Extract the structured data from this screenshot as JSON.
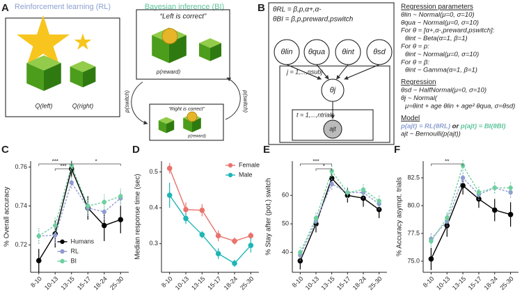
{
  "panel_a": {
    "panel_label": "A",
    "rl_title": "Reinforcement learning (RL)",
    "bi_title": "Bayesian inference (BI)",
    "q_left": "Q(left)",
    "q_right": "Q(right)",
    "left_correct": "“Left is correct”",
    "right_correct": "“Right is correct”",
    "p_reward": [
      "p(reward)",
      "p(reward)"
    ],
    "p_switch": [
      "p(switch)",
      "p(switch)"
    ]
  },
  "panel_b": {
    "panel_label": "B",
    "theta_rl": "θRL = β,p,α+,α-",
    "theta_bi": "θBI = β,p,preward,pswitch",
    "nodes": [
      "θlin",
      "θqua",
      "θint",
      "θsd"
    ],
    "subj_plate": "j = 1,...,nsubj",
    "node_j": "θj",
    "trial_plate": "t = 1,...,ntrials",
    "node_a": "ajt",
    "lines": [
      {
        "text": "Regression parameters",
        "kind": "heading"
      },
      {
        "text": "θlin ~ Normal(μ=0, σ=10)",
        "kind": "plain"
      },
      {
        "text": "θqua ~ Normal(μ=0, σ=10)",
        "kind": "plain"
      },
      {
        "text": "For θ = [α+,α-,preward,pswitch]:",
        "kind": "plain"
      },
      {
        "text": "θint ~ Beta(α=1, β=1)",
        "kind": "indent"
      },
      {
        "text": "For θ = p:",
        "kind": "plain"
      },
      {
        "text": "θint ~ Normal(μ=0, σ=10)",
        "kind": "indent"
      },
      {
        "text": "For θ = β:",
        "kind": "plain"
      },
      {
        "text": "θint ~ Gamma(α=1, β=1)",
        "kind": "indent"
      },
      {
        "text": "Regression",
        "kind": "heading"
      },
      {
        "text": "θsd ~ HalfNormal(μ=0, σ=10)",
        "kind": "plain"
      },
      {
        "text": "θj ~ Normal(",
        "kind": "plain"
      },
      {
        "text": "μ=θint + age θlin + age² θqua, σ=θsd)",
        "kind": "indent"
      },
      {
        "text": "Model",
        "kind": "heading"
      },
      {
        "parts": [
          {
            "text": "p(ajt) = RL(θRL)",
            "color": "#8a9fd0"
          },
          {
            "text": " or "
          },
          {
            "text": "p(ajt) = BI(θBI)",
            "color": "#5cc49a"
          }
        ],
        "kind": "plain"
      },
      {
        "text": "ajt ~ Bernoulli(p(ajt))",
        "kind": "plain"
      }
    ]
  },
  "chart_data": [
    {
      "type": "line",
      "panel_label": "C",
      "ylabel": "% Overall accuracy",
      "categories": [
        "8-10",
        "10-13",
        "13-15",
        "15-17",
        "18-24",
        "25-30"
      ],
      "ylim": [
        0.706,
        0.763
      ],
      "yticks": [
        0.72,
        0.74,
        0.76
      ],
      "legend": "lower center",
      "series": [
        {
          "name": "Humans",
          "color": "#000000",
          "dashed": false,
          "values": [
            0.712,
            0.7257,
            0.759,
            0.739,
            0.73,
            0.733
          ],
          "errors": [
            0.006,
            0.007,
            0.004,
            0.006,
            0.008,
            0.007
          ]
        },
        {
          "name": "RL",
          "color": "#8f9bd0",
          "dashed": true,
          "values": [
            0.7246,
            0.725,
            0.752,
            0.739,
            0.737,
            0.744
          ],
          "errors": [
            0.004,
            0.004,
            0.003,
            0.004,
            0.004,
            0.004
          ]
        },
        {
          "name": "BI",
          "color": "#6fcfa0",
          "dashed": true,
          "values": [
            0.7246,
            0.73,
            0.7607,
            0.74,
            0.742,
            0.745
          ],
          "errors": [
            0.004,
            0.004,
            0.003,
            0.004,
            0.004,
            0.004
          ]
        }
      ],
      "brackets": [
        {
          "label": "***",
          "from": "8-10",
          "to": "13-15"
        },
        {
          "label": "***",
          "from": "10-13",
          "to": "13-15"
        },
        {
          "label": "*",
          "from": "13-15",
          "to": "25-30"
        }
      ]
    },
    {
      "type": "line",
      "panel_label": "D",
      "ylabel": "Median response time (sec)",
      "categories": [
        "8-10",
        "10-13",
        "13-15",
        "15-17",
        "18-24",
        "25-30"
      ],
      "ylim": [
        0.22,
        0.53
      ],
      "yticks": [
        0.3,
        0.4,
        0.5
      ],
      "legend": "upper right",
      "series": [
        {
          "name": "Female",
          "color": "#e8736c",
          "dashed": false,
          "values": [
            0.51,
            0.395,
            0.393,
            0.322,
            0.307,
            0.322
          ],
          "errors": [
            0.015,
            0.02,
            0.017,
            0.015,
            0.01,
            0.01
          ]
        },
        {
          "name": "Male",
          "color": "#1fb5b5",
          "dashed": false,
          "values": [
            0.435,
            0.37,
            0.325,
            0.272,
            0.245,
            0.295
          ],
          "errors": [
            0.035,
            0.015,
            0.01,
            0.015,
            0.01,
            0.02
          ]
        }
      ],
      "brackets": []
    },
    {
      "type": "line",
      "panel_label": "E",
      "ylabel": "% Stay after (pot.) switch",
      "categories": [
        "8-10",
        "10-13",
        "13-15",
        "15-17",
        "18-24",
        "25-30"
      ],
      "ylim": [
        33,
        72
      ],
      "yticks": [
        40,
        50,
        60
      ],
      "legend": null,
      "series": [
        {
          "name": "Humans",
          "color": "#000000",
          "dashed": false,
          "values": [
            37,
            50,
            66,
            60,
            59,
            55
          ],
          "errors": [
            3,
            3,
            2,
            2.5,
            3,
            3
          ]
        },
        {
          "name": "RL",
          "color": "#8f9bd0",
          "dashed": true,
          "values": [
            39,
            51,
            64,
            61,
            61,
            57
          ],
          "errors": [
            2,
            2,
            2,
            2,
            2,
            2
          ]
        },
        {
          "name": "BI",
          "color": "#6fcfa0",
          "dashed": true,
          "values": [
            40,
            52,
            68.5,
            61,
            62,
            58
          ],
          "errors": [
            2,
            2,
            2,
            2,
            2,
            2
          ]
        }
      ],
      "brackets": [
        {
          "label": "***",
          "from": "8-10",
          "to": "13-15"
        },
        {
          "label": "*",
          "from": "10-13",
          "to": "13-15"
        }
      ]
    },
    {
      "type": "line",
      "panel_label": "F",
      "ylabel": "% Accuracy asympt. trials",
      "categories": [
        "8-10",
        "10-13",
        "13-15",
        "15-17",
        "18-24",
        "25-30"
      ],
      "ylim": [
        74,
        84
      ],
      "yticks": [
        {
          "value": 75,
          "label": "75.0"
        },
        77.5,
        {
          "value": 80,
          "label": "80.0"
        },
        82.5
      ],
      "legend": null,
      "series": [
        {
          "name": "Humans",
          "color": "#000000",
          "dashed": false,
          "values": [
            75.2,
            78.2,
            81.8,
            80.6,
            79.6,
            79.2
          ],
          "errors": [
            1,
            1,
            0.8,
            0.8,
            1,
            1.1
          ]
        },
        {
          "name": "RL",
          "color": "#8f9bd0",
          "dashed": true,
          "values": [
            77,
            78.6,
            82.5,
            81,
            81.6,
            81.2
          ],
          "errors": [
            0.5,
            0.5,
            0.5,
            0.5,
            0.5,
            0.5
          ]
        },
        {
          "name": "BI",
          "color": "#6fcfa0",
          "dashed": true,
          "values": [
            76.8,
            78.9,
            83.6,
            81.2,
            81.6,
            81.6
          ],
          "errors": [
            0.5,
            0.5,
            0.5,
            0.5,
            0.5,
            0.5
          ]
        }
      ],
      "brackets": [
        {
          "label": "**",
          "from": "8-10",
          "to": "13-15"
        }
      ]
    }
  ]
}
